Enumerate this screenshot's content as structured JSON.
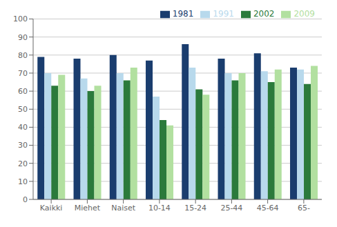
{
  "chart_data": {
    "type": "bar",
    "categories": [
      "Kaikki",
      "Miehet",
      "Naiset",
      "10-14",
      "15-24",
      "25-44",
      "45-64",
      "65-"
    ],
    "series": [
      {
        "name": "1981",
        "color": "#1a3d6e",
        "values": [
          79,
          78,
          80,
          77,
          86,
          78,
          81,
          73
        ]
      },
      {
        "name": "1991",
        "color": "#b8d9ec",
        "values": [
          70,
          67,
          70,
          57,
          73,
          70,
          71,
          72
        ]
      },
      {
        "name": "2002",
        "color": "#2b7a3b",
        "values": [
          63,
          60,
          66,
          44,
          61,
          66,
          65,
          64
        ]
      },
      {
        "name": "2009",
        "color": "#b2e0a0",
        "values": [
          69,
          63,
          73,
          41,
          58,
          70,
          72,
          74
        ]
      }
    ],
    "ylim": [
      0,
      100
    ],
    "yticks": [
      0,
      10,
      20,
      30,
      40,
      50,
      60,
      70,
      80,
      90,
      100
    ],
    "grid": true,
    "legend": "upper right"
  }
}
